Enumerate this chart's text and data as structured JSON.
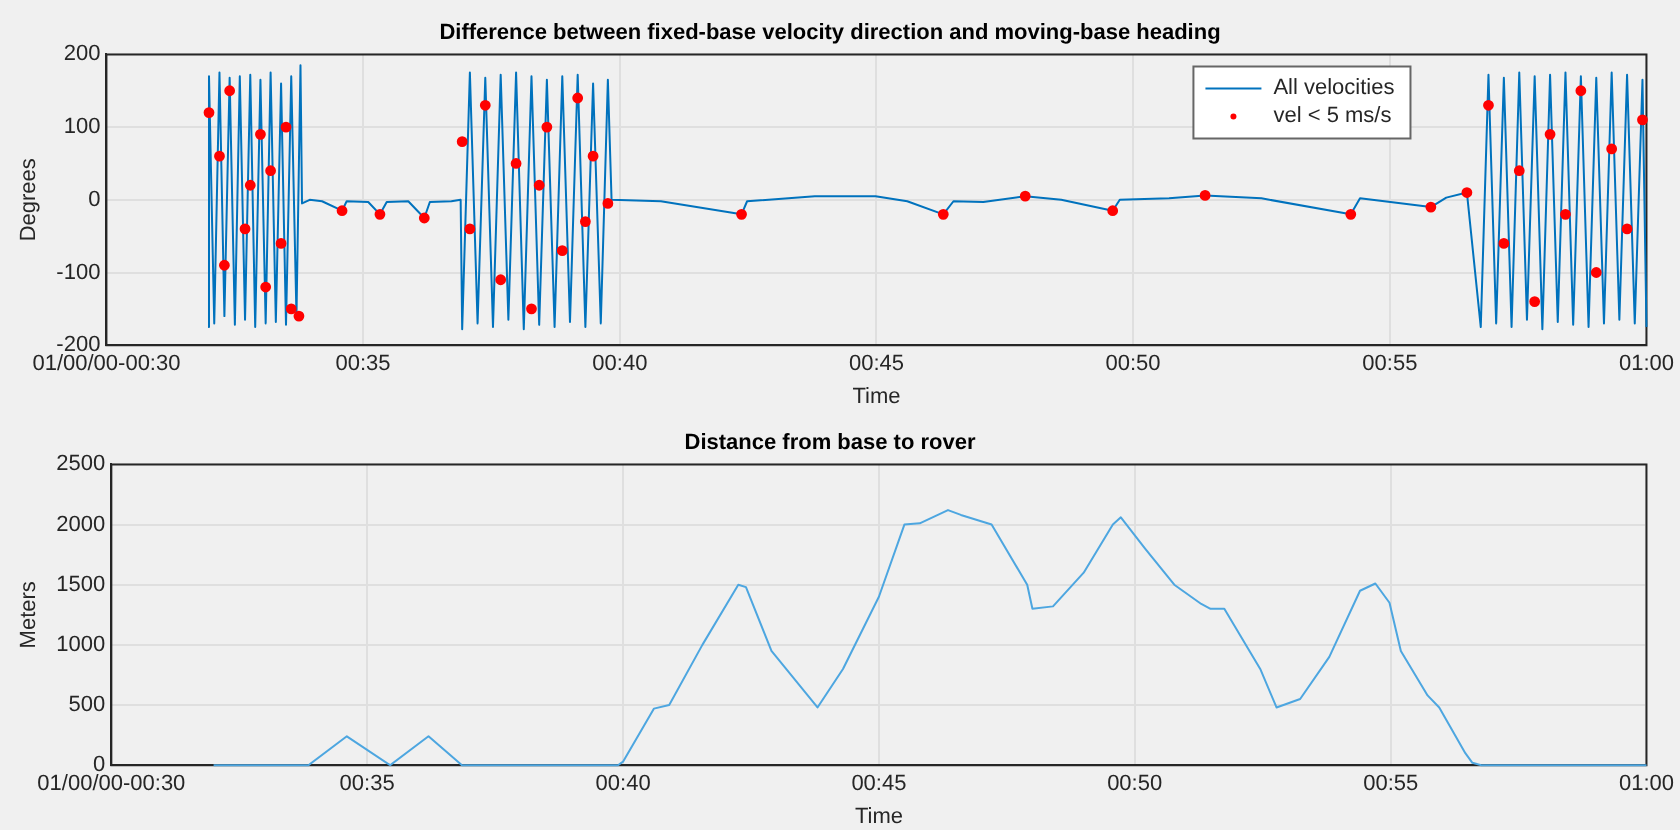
{
  "chart_data": [
    {
      "type": "line",
      "title": "Difference between fixed-base velocity direction and moving-base heading",
      "xlabel": "Time",
      "ylabel": "Degrees",
      "xlim": [
        0.5,
        1.0
      ],
      "xticks": [
        {
          "value": 0.5,
          "label": "01/00/00-00:30"
        },
        {
          "value": 0.5833,
          "label": "00:35"
        },
        {
          "value": 0.6667,
          "label": "00:40"
        },
        {
          "value": 0.75,
          "label": "00:45"
        },
        {
          "value": 0.8333,
          "label": "00:50"
        },
        {
          "value": 0.9167,
          "label": "00:55"
        },
        {
          "value": 1.0,
          "label": "01:00"
        }
      ],
      "ylim": [
        -200,
        200
      ],
      "yticks": [
        -200,
        -100,
        0,
        100,
        200
      ],
      "grid": true,
      "legend": "top right",
      "series": [
        {
          "name": "All velocities",
          "color": "#0072bd",
          "marker": "none",
          "x": [
            0.533,
            0.5333,
            0.535,
            0.5367,
            0.5383,
            0.54,
            0.5417,
            0.5433,
            0.545,
            0.5467,
            0.5483,
            0.55,
            0.5517,
            0.5533,
            0.555,
            0.5567,
            0.5583,
            0.56,
            0.5617,
            0.563,
            0.5635,
            0.566,
            0.57,
            0.5765,
            0.578,
            0.585,
            0.5888,
            0.591,
            0.598,
            0.6032,
            0.605,
            0.612,
            0.615,
            0.6155,
            0.618,
            0.6205,
            0.623,
            0.6255,
            0.628,
            0.6305,
            0.633,
            0.6355,
            0.638,
            0.6405,
            0.643,
            0.6455,
            0.648,
            0.6505,
            0.653,
            0.6555,
            0.658,
            0.6605,
            0.6628,
            0.664,
            0.68,
            0.7062,
            0.708,
            0.73,
            0.7497,
            0.76,
            0.7717,
            0.775,
            0.7847,
            0.7983,
            0.81,
            0.8267,
            0.829,
            0.845,
            0.8567,
            0.875,
            0.904,
            0.907,
            0.93,
            0.935,
            0.9417,
            0.9462,
            0.9487,
            0.9512,
            0.9537,
            0.9562,
            0.9587,
            0.9612,
            0.9637,
            0.9662,
            0.9687,
            0.9712,
            0.9737,
            0.9762,
            0.9787,
            0.9812,
            0.9837,
            0.9862,
            0.9887,
            0.9912,
            0.9937,
            0.9962,
            0.9987,
            1.0
          ],
          "values": [
            -175,
            170,
            -170,
            175,
            -160,
            168,
            -172,
            170,
            -165,
            172,
            -175,
            165,
            -170,
            175,
            -168,
            160,
            -172,
            170,
            -160,
            185,
            -5,
            0,
            -2,
            -15,
            -2,
            -3,
            -20,
            -3,
            -2,
            -25,
            -3,
            -2,
            0,
            -178,
            175,
            -170,
            168,
            -175,
            172,
            -165,
            175,
            -178,
            170,
            -172,
            165,
            -175,
            170,
            -168,
            172,
            -175,
            160,
            -170,
            165,
            0,
            -2,
            -20,
            -2,
            5,
            5,
            -2,
            -20,
            -2,
            -3,
            5,
            0,
            -15,
            0,
            2,
            6,
            2,
            -20,
            2,
            -10,
            3,
            10,
            -175,
            172,
            -170,
            168,
            -175,
            175,
            -165,
            170,
            -178,
            172,
            -168,
            175,
            -172,
            170,
            -175,
            168,
            -170,
            175,
            -165,
            172,
            -170,
            165,
            -175
          ]
        },
        {
          "name": "vel < 5 ms/s",
          "type": "scatter",
          "color": "#ff0000",
          "marker": "circle",
          "x": [
            0.5333,
            0.5367,
            0.5383,
            0.54,
            0.545,
            0.5467,
            0.55,
            0.5517,
            0.5533,
            0.5567,
            0.5583,
            0.56,
            0.5625,
            0.5765,
            0.5888,
            0.6032,
            0.6155,
            0.618,
            0.623,
            0.628,
            0.633,
            0.638,
            0.6405,
            0.643,
            0.648,
            0.653,
            0.6555,
            0.658,
            0.6628,
            0.7062,
            0.7717,
            0.7983,
            0.8267,
            0.8567,
            0.904,
            0.93,
            0.9417,
            0.9487,
            0.9537,
            0.9587,
            0.9637,
            0.9687,
            0.9737,
            0.9787,
            0.9837,
            0.9887,
            0.9937,
            0.9987
          ],
          "values": [
            120,
            60,
            -90,
            150,
            -40,
            20,
            90,
            -120,
            40,
            -60,
            100,
            -150,
            -160,
            -15,
            -20,
            -25,
            80,
            -40,
            130,
            -110,
            50,
            -150,
            20,
            100,
            -70,
            140,
            -30,
            60,
            -5,
            -20,
            -20,
            5,
            -15,
            6,
            -20,
            -10,
            10,
            130,
            -60,
            40,
            -140,
            90,
            -20,
            150,
            -100,
            70,
            -40,
            110
          ]
        }
      ]
    },
    {
      "type": "line",
      "title": "Distance from base to rover",
      "xlabel": "Time",
      "ylabel": "Meters",
      "xlim": [
        0.5,
        1.0
      ],
      "xticks": [
        {
          "value": 0.5,
          "label": "01/00/00-00:30"
        },
        {
          "value": 0.5833,
          "label": "00:35"
        },
        {
          "value": 0.6667,
          "label": "00:40"
        },
        {
          "value": 0.75,
          "label": "00:45"
        },
        {
          "value": 0.8333,
          "label": "00:50"
        },
        {
          "value": 0.9167,
          "label": "00:55"
        },
        {
          "value": 1.0,
          "label": "01:00"
        }
      ],
      "ylim": [
        0,
        2500
      ],
      "yticks": [
        0,
        500,
        1000,
        1500,
        2000,
        2500
      ],
      "grid": true,
      "series": [
        {
          "color": "#4da6e0",
          "x": [
            0.5333,
            0.5642,
            0.5767,
            0.5908,
            0.6033,
            0.6142,
            0.665,
            0.6667,
            0.6767,
            0.6817,
            0.6925,
            0.7042,
            0.7067,
            0.715,
            0.73,
            0.7383,
            0.75,
            0.7583,
            0.7633,
            0.7725,
            0.7767,
            0.7867,
            0.7983,
            0.8,
            0.8067,
            0.8167,
            0.8262,
            0.8288,
            0.8367,
            0.8462,
            0.855,
            0.858,
            0.8625,
            0.8742,
            0.8795,
            0.8872,
            0.8967,
            0.9067,
            0.9117,
            0.9163,
            0.92,
            0.9287,
            0.9325,
            0.941,
            0.9433,
            0.9462,
            1.0
          ],
          "values": [
            0,
            0,
            240,
            0,
            240,
            0,
            0,
            30,
            470,
            500,
            1000,
            1500,
            1480,
            950,
            480,
            800,
            1400,
            2000,
            2010,
            2120,
            2080,
            2000,
            1500,
            1300,
            1320,
            1600,
            2000,
            2060,
            1800,
            1500,
            1340,
            1300,
            1300,
            800,
            480,
            550,
            900,
            1450,
            1510,
            1350,
            950,
            580,
            480,
            100,
            20,
            0,
            0
          ]
        }
      ]
    }
  ]
}
